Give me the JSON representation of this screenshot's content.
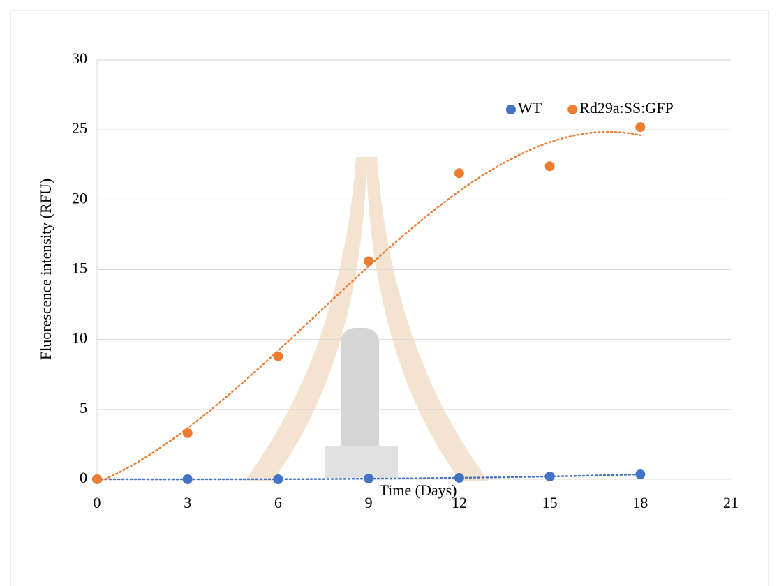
{
  "chart_data": {
    "type": "scatter",
    "x_label": "Time (Days)",
    "y_label": "Fluorescence intensity (RFU)",
    "x": [
      0,
      3,
      6,
      9,
      12,
      15,
      18
    ],
    "series": [
      {
        "name": "WT",
        "color": "#4472c4",
        "values": [
          0,
          0,
          0,
          0.05,
          0.1,
          0.2,
          0.35
        ]
      },
      {
        "name": "Rd29a:SS:GFP",
        "color": "#ed7d31",
        "values": [
          0,
          3.3,
          8.8,
          15.6,
          21.9,
          22.4,
          25.2
        ]
      }
    ],
    "xlim": [
      0,
      21
    ],
    "xticks": [
      0,
      3,
      6,
      9,
      12,
      15,
      18,
      21
    ],
    "ylim": [
      0,
      30
    ],
    "yticks": [
      0,
      5,
      10,
      15,
      20,
      25,
      30
    ],
    "grid": true,
    "trendline": "polynomial",
    "legend": "top-right"
  }
}
